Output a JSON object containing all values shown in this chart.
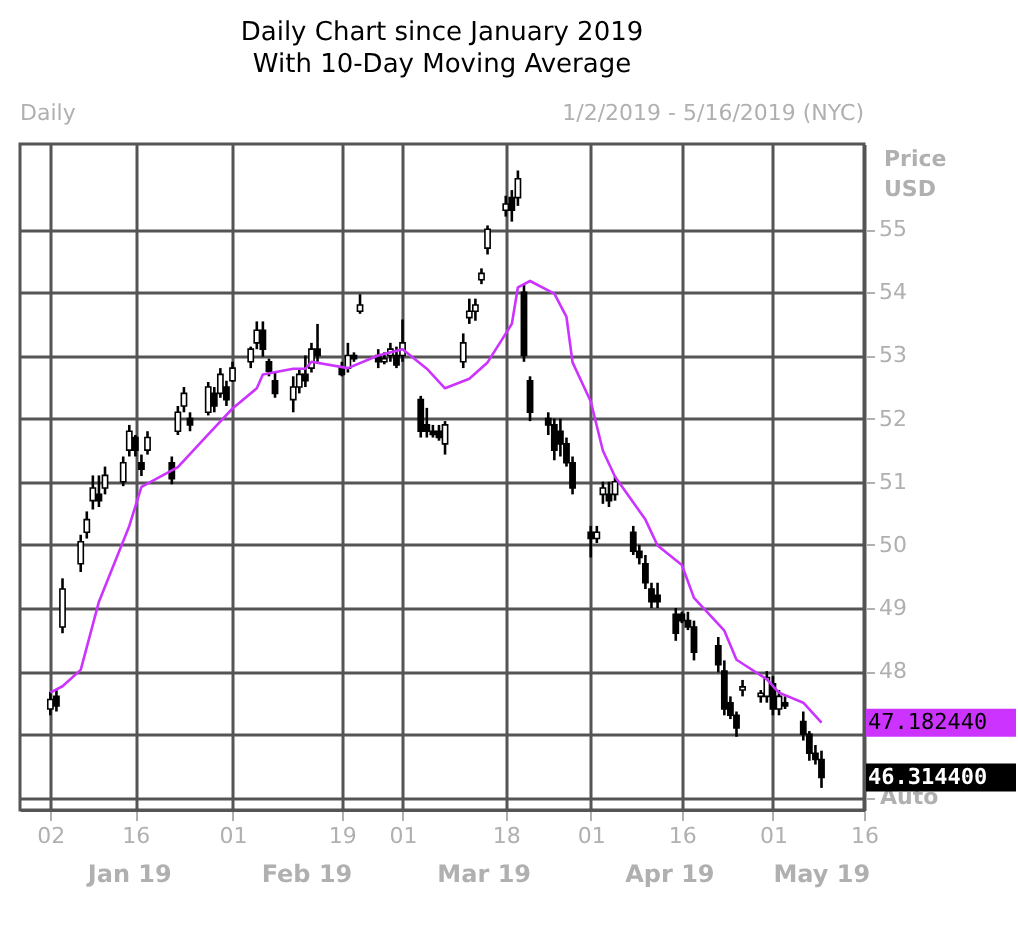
{
  "chart_data": {
    "type": "candlestick",
    "title": "Daily Chart since January 2019",
    "subtitle": "With 10-Day Moving Average",
    "ylabel": "Price USD",
    "color": "#000000",
    "x": [
      "2019-01-02",
      "2019-01-03",
      "2019-01-04",
      "2019-01-07",
      "2019-01-08",
      "2019-01-09",
      "2019-01-10",
      "2019-01-11",
      "2019-01-14",
      "2019-01-15",
      "2019-01-16",
      "2019-01-17",
      "2019-01-18",
      "2019-01-22",
      "2019-01-23",
      "2019-01-24",
      "2019-01-25",
      "2019-01-28",
      "2019-01-29",
      "2019-01-30",
      "2019-01-31",
      "2019-02-01",
      "2019-02-04",
      "2019-02-05",
      "2019-02-06",
      "2019-02-07",
      "2019-02-08",
      "2019-02-11",
      "2019-02-12",
      "2019-02-13",
      "2019-02-14",
      "2019-02-15",
      "2019-02-19",
      "2019-02-20",
      "2019-02-21",
      "2019-02-22",
      "2019-02-25",
      "2019-02-26",
      "2019-02-27",
      "2019-02-28",
      "2019-03-01",
      "2019-03-04",
      "2019-03-05",
      "2019-03-06",
      "2019-03-07",
      "2019-03-08",
      "2019-03-11",
      "2019-03-12",
      "2019-03-13",
      "2019-03-14",
      "2019-03-15",
      "2019-03-18",
      "2019-03-19",
      "2019-03-20",
      "2019-03-21",
      "2019-03-22",
      "2019-03-25",
      "2019-03-26",
      "2019-03-27",
      "2019-03-28",
      "2019-03-29",
      "2019-04-01",
      "2019-04-02",
      "2019-04-03",
      "2019-04-04",
      "2019-04-05",
      "2019-04-08",
      "2019-04-09",
      "2019-04-10",
      "2019-04-11",
      "2019-04-12",
      "2019-04-15",
      "2019-04-16",
      "2019-04-17",
      "2019-04-18",
      "2019-04-22",
      "2019-04-23",
      "2019-04-24",
      "2019-04-25",
      "2019-04-26",
      "2019-04-29",
      "2019-04-30",
      "2019-05-01",
      "2019-05-02",
      "2019-05-03",
      "2019-05-06",
      "2019-05-07",
      "2019-05-08",
      "2019-05-09"
    ],
    "ohlc": [
      [
        47.4,
        47.67,
        47.3,
        47.55
      ],
      [
        47.6,
        47.7,
        47.36,
        47.45
      ],
      [
        48.7,
        49.47,
        48.6,
        49.3
      ],
      [
        49.7,
        50.16,
        49.57,
        50.05
      ],
      [
        50.2,
        50.53,
        50.1,
        50.4
      ],
      [
        50.7,
        51.1,
        50.56,
        50.9
      ],
      [
        50.8,
        51.1,
        50.6,
        50.7
      ],
      [
        50.9,
        51.24,
        50.8,
        51.1
      ],
      [
        51.0,
        51.4,
        50.93,
        51.3
      ],
      [
        51.5,
        51.9,
        51.4,
        51.8
      ],
      [
        51.7,
        51.74,
        51.4,
        51.5
      ],
      [
        51.3,
        51.43,
        51.09,
        51.2
      ],
      [
        51.5,
        51.8,
        51.43,
        51.7
      ],
      [
        51.3,
        51.4,
        50.96,
        51.05
      ],
      [
        51.8,
        52.2,
        51.74,
        52.1
      ],
      [
        52.2,
        52.5,
        52.1,
        52.4
      ],
      [
        52.0,
        52.1,
        51.8,
        51.9
      ],
      [
        52.1,
        52.58,
        52.05,
        52.5
      ],
      [
        52.4,
        52.5,
        52.1,
        52.2
      ],
      [
        52.4,
        52.8,
        52.33,
        52.7
      ],
      [
        52.5,
        52.6,
        52.2,
        52.3
      ],
      [
        52.6,
        52.9,
        52.58,
        52.8
      ],
      [
        52.9,
        53.14,
        52.8,
        53.1
      ],
      [
        53.2,
        53.54,
        53.1,
        53.4
      ],
      [
        53.4,
        53.54,
        52.98,
        53.1
      ],
      [
        52.9,
        52.95,
        52.67,
        52.75
      ],
      [
        52.6,
        52.73,
        52.33,
        52.4
      ],
      [
        52.3,
        52.67,
        52.1,
        52.5
      ],
      [
        52.5,
        52.8,
        52.4,
        52.7
      ],
      [
        52.7,
        53.0,
        52.5,
        52.6
      ],
      [
        52.8,
        53.2,
        52.73,
        53.1
      ],
      [
        53.1,
        53.5,
        52.9,
        53.0
      ],
      [
        52.8,
        52.9,
        52.67,
        52.7
      ],
      [
        52.8,
        53.2,
        52.73,
        53.0
      ],
      [
        53.0,
        53.05,
        52.9,
        52.95
      ],
      [
        53.7,
        53.97,
        53.66,
        53.8
      ],
      [
        53.0,
        53.1,
        52.8,
        52.9
      ],
      [
        52.9,
        53.05,
        52.86,
        52.95
      ],
      [
        53.0,
        53.2,
        52.9,
        53.1
      ],
      [
        53.0,
        53.14,
        52.8,
        52.85
      ],
      [
        53.0,
        53.57,
        52.9,
        53.2
      ],
      [
        52.3,
        52.36,
        51.7,
        51.8
      ],
      [
        51.9,
        52.17,
        51.7,
        51.8
      ],
      [
        51.8,
        51.9,
        51.7,
        51.75
      ],
      [
        51.8,
        51.9,
        51.65,
        51.7
      ],
      [
        51.6,
        51.96,
        51.43,
        51.9
      ],
      [
        52.9,
        53.35,
        52.8,
        53.2
      ],
      [
        53.6,
        53.9,
        53.5,
        53.7
      ],
      [
        53.7,
        53.9,
        53.55,
        53.8
      ],
      [
        54.2,
        54.38,
        54.13,
        54.3
      ],
      [
        54.7,
        55.06,
        54.6,
        55.0
      ],
      [
        55.3,
        55.53,
        55.2,
        55.4
      ],
      [
        55.5,
        55.62,
        55.12,
        55.3
      ],
      [
        55.5,
        55.93,
        55.37,
        55.8
      ],
      [
        54.0,
        54.13,
        52.9,
        53.0
      ],
      [
        52.6,
        52.67,
        51.96,
        52.1
      ],
      [
        52.0,
        52.1,
        51.74,
        51.9
      ],
      [
        51.9,
        52.0,
        51.34,
        51.5
      ],
      [
        51.8,
        52.0,
        51.4,
        51.6
      ],
      [
        51.6,
        51.7,
        51.24,
        51.3
      ],
      [
        51.3,
        51.4,
        50.8,
        50.9
      ],
      [
        50.2,
        50.3,
        49.8,
        50.1
      ],
      [
        50.1,
        50.3,
        50.03,
        50.2
      ],
      [
        50.8,
        51.0,
        50.65,
        50.9
      ],
      [
        50.8,
        51.0,
        50.6,
        50.7
      ],
      [
        50.8,
        51.09,
        50.7,
        51.0
      ],
      [
        50.2,
        50.3,
        49.84,
        49.9
      ],
      [
        49.9,
        50.0,
        49.69,
        49.8
      ],
      [
        49.7,
        49.84,
        49.3,
        49.4
      ],
      [
        49.3,
        49.4,
        49.0,
        49.1
      ],
      [
        49.2,
        49.4,
        49.0,
        49.1
      ],
      [
        48.9,
        49.0,
        48.48,
        48.6
      ],
      [
        48.9,
        48.94,
        48.76,
        48.8
      ],
      [
        48.8,
        48.94,
        48.65,
        48.7
      ],
      [
        48.7,
        48.8,
        48.17,
        48.3
      ],
      [
        48.4,
        48.54,
        47.98,
        48.1
      ],
      [
        48.0,
        48.17,
        47.3,
        47.4
      ],
      [
        47.5,
        47.6,
        47.24,
        47.3
      ],
      [
        47.3,
        47.36,
        46.96,
        47.1
      ],
      [
        47.7,
        47.86,
        47.6,
        47.75
      ],
      [
        47.6,
        47.7,
        47.5,
        47.65
      ],
      [
        47.6,
        48.0,
        47.5,
        47.9
      ],
      [
        47.8,
        47.92,
        47.3,
        47.4
      ],
      [
        47.4,
        47.7,
        47.3,
        47.6
      ],
      [
        47.5,
        47.6,
        47.4,
        47.45
      ],
      [
        47.2,
        47.36,
        46.9,
        47.0
      ],
      [
        47.0,
        47.05,
        46.58,
        46.7
      ],
      [
        46.7,
        46.83,
        46.52,
        46.6
      ],
      [
        46.6,
        46.74,
        46.15,
        46.3144
      ]
    ],
    "series": [
      {
        "type": "line",
        "color": "#cc33ff",
        "x": [
          "2019-01-02",
          "2019-01-04",
          "2019-01-07",
          "2019-01-10",
          "2019-01-15",
          "2019-01-17",
          "2019-01-23",
          "2019-01-28",
          "2019-02-01",
          "2019-02-05",
          "2019-02-06",
          "2019-02-11",
          "2019-02-13",
          "2019-02-14",
          "2019-02-20",
          "2019-02-25",
          "2019-03-01",
          "2019-03-05",
          "2019-03-08",
          "2019-03-12",
          "2019-03-15",
          "2019-03-19",
          "2019-03-20",
          "2019-03-22",
          "2019-03-26",
          "2019-03-28",
          "2019-03-29",
          "2019-04-01",
          "2019-04-03",
          "2019-04-05",
          "2019-04-10",
          "2019-04-12",
          "2019-04-16",
          "2019-04-18",
          "2019-04-23",
          "2019-04-25",
          "2019-04-30",
          "2019-05-02",
          "2019-05-06",
          "2019-05-09"
        ],
        "values": [
          47.66,
          47.76,
          48.02,
          49.1,
          50.3,
          50.92,
          51.23,
          51.75,
          52.16,
          52.48,
          52.7,
          52.79,
          52.79,
          52.9,
          52.8,
          53.0,
          53.1,
          52.79,
          52.48,
          52.63,
          52.89,
          53.5,
          54.08,
          54.18,
          53.98,
          53.61,
          52.89,
          52.27,
          51.49,
          51.08,
          50.4,
          49.99,
          49.68,
          49.16,
          48.64,
          48.18,
          47.87,
          47.66,
          47.5,
          47.18244
        ]
      }
    ],
    "xlim": [
      "2018-12-28",
      "2019-05-16"
    ],
    "xticks": [
      {
        "value": "2019-01-02",
        "label": "02"
      },
      {
        "value": "2019-01-16",
        "label": "16"
      },
      {
        "value": "2019-02-01",
        "label": "01"
      },
      {
        "value": "2019-02-19",
        "label": "19"
      },
      {
        "value": "2019-03-01",
        "label": "01"
      },
      {
        "value": "2019-03-18",
        "label": "18"
      },
      {
        "value": "2019-04-01",
        "label": "01"
      },
      {
        "value": "2019-04-16",
        "label": "16"
      },
      {
        "value": "2019-05-01",
        "label": "01"
      },
      {
        "value": "2019-05-16",
        "label": "16"
      }
    ],
    "ylim": [
      45.8,
      56.35
    ],
    "yticks": [
      {
        "value": 46,
        "label": null
      },
      {
        "value": 47,
        "label": null
      },
      48,
      49,
      50,
      51,
      52,
      53,
      54,
      55
    ],
    "grid": true,
    "annotations": [
      "Daily",
      "1/2/2019 - 5/16/2019 (NYC)",
      "Auto",
      {
        "text": "47.182440",
        "x": "2019-05-09",
        "y": 47.18244
      },
      {
        "text": "46.314400",
        "x": "2019-05-09",
        "y": 46.3144
      },
      "Jan 19",
      "Feb 19",
      "Mar 19",
      "Apr 19",
      "May 19"
    ]
  }
}
